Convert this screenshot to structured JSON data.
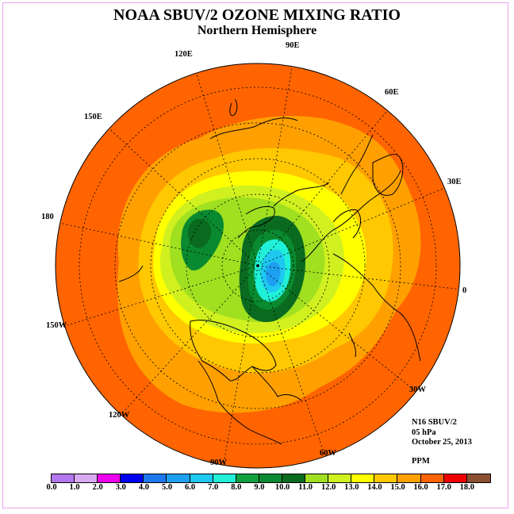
{
  "title": "NOAA SBUV/2 OZONE MIXING RATIO",
  "subtitle": "Northern Hemisphere",
  "info": {
    "satellite": "N16 SBUV/2",
    "level": "05 hPa",
    "date": "October 25, 2013",
    "units": "PPM"
  },
  "longitude_labels": [
    "90E",
    "60E",
    "30E",
    "0",
    "30W",
    "60W",
    "90W",
    "120W",
    "150W",
    "180",
    "150E",
    "120E"
  ],
  "colorbar": {
    "ticks": [
      "0.0",
      "1.0",
      "2.0",
      "3.0",
      "4.0",
      "5.0",
      "6.0",
      "7.0",
      "8.0",
      "9.0",
      "10.0",
      "11.0",
      "12.0",
      "13.0",
      "14.0",
      "15.0",
      "16.0",
      "17.0",
      "18.0"
    ],
    "colors": [
      "#b377f0",
      "#d9a9f2",
      "#ee00ee",
      "#0000ee",
      "#1e78f0",
      "#1ea0f0",
      "#1ec8f0",
      "#20f0d8",
      "#10a040",
      "#0a8a30",
      "#0a6a20",
      "#a0e020",
      "#d0f020",
      "#ffff00",
      "#ffc800",
      "#ffa000",
      "#ff6400",
      "#ee0000",
      "#8b5030"
    ]
  }
}
